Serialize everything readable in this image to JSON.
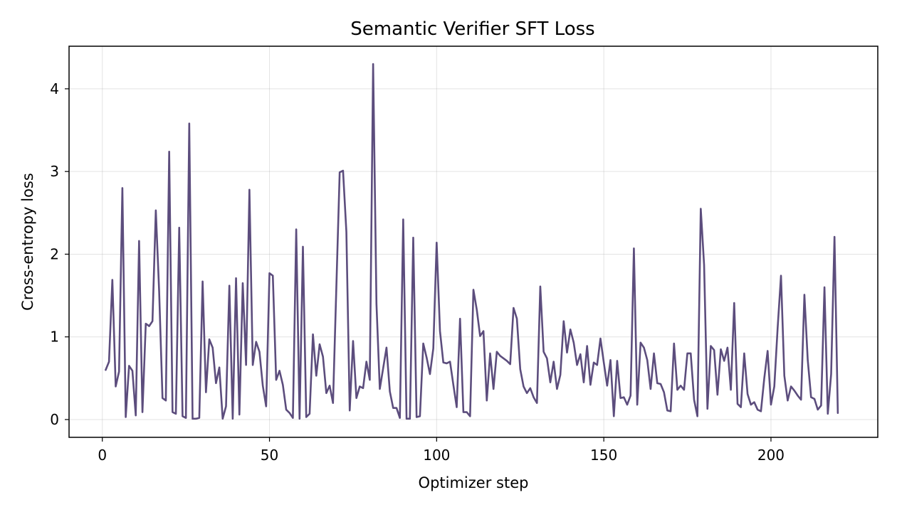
{
  "chart_data": {
    "type": "line",
    "title": "Semantic Verifier SFT Loss",
    "xlabel": "Optimizer step",
    "ylabel": "Cross-entropy loss",
    "xlim": [
      -9.95,
      231.95
    ],
    "ylim": [
      -0.215,
      4.515
    ],
    "xticks": [
      0,
      50,
      100,
      150,
      200
    ],
    "yticks": [
      0,
      1,
      2,
      3,
      4
    ],
    "grid": true,
    "legend": "none",
    "line_color": "#5c4d7d",
    "series": [
      {
        "x": [
          1,
          2,
          3,
          4,
          5,
          6,
          7,
          8,
          9,
          10,
          11,
          12,
          13,
          14,
          15,
          16,
          17,
          18,
          19,
          20,
          21,
          22,
          23,
          24,
          25,
          26,
          27,
          28,
          29,
          30,
          31,
          32,
          33,
          34,
          35,
          36,
          37,
          38,
          39,
          40,
          41,
          42,
          43,
          44,
          45,
          46,
          47,
          48,
          49,
          50,
          51,
          52,
          53,
          54,
          55,
          56,
          57,
          58,
          59,
          60,
          61,
          62,
          63,
          64,
          65,
          66,
          67,
          68,
          69,
          70,
          71,
          72,
          73,
          74,
          75,
          76,
          77,
          78,
          79,
          80,
          81,
          82,
          83,
          84,
          85,
          86,
          87,
          88,
          89,
          90,
          91,
          92,
          93,
          94,
          95,
          96,
          97,
          98,
          99,
          100,
          101,
          102,
          103,
          104,
          105,
          106,
          107,
          108,
          109,
          110,
          111,
          112,
          113,
          114,
          115,
          116,
          117,
          118,
          119,
          120,
          121,
          122,
          123,
          124,
          125,
          126,
          127,
          128,
          129,
          130,
          131,
          132,
          133,
          134,
          135,
          136,
          137,
          138,
          139,
          140,
          141,
          142,
          143,
          144,
          145,
          146,
          147,
          148,
          149,
          150,
          151,
          152,
          153,
          154,
          155,
          156,
          157,
          158,
          159,
          160,
          161,
          162,
          163,
          164,
          165,
          166,
          167,
          168,
          169,
          170,
          171,
          172,
          173,
          174,
          175,
          176,
          177,
          178,
          179,
          180,
          181,
          182,
          183,
          184,
          185,
          186,
          187,
          188,
          189,
          190,
          191,
          192,
          193,
          194,
          195,
          196,
          197,
          198,
          199,
          200,
          201,
          202,
          203,
          204,
          205,
          206,
          207,
          208,
          209,
          210,
          211,
          212,
          213,
          214,
          215,
          216,
          217,
          218,
          219,
          220
        ],
        "values": [
          0.6,
          0.7,
          1.69,
          0.4,
          0.58,
          2.8,
          0.03,
          0.65,
          0.59,
          0.05,
          2.16,
          0.09,
          1.16,
          1.13,
          1.19,
          2.53,
          1.55,
          0.26,
          0.23,
          3.24,
          0.09,
          0.07,
          2.32,
          0.04,
          0.02,
          3.58,
          0.01,
          0.01,
          0.02,
          1.67,
          0.33,
          0.97,
          0.87,
          0.44,
          0.63,
          0.01,
          0.16,
          1.62,
          0.01,
          1.71,
          0.06,
          1.65,
          0.66,
          2.78,
          0.66,
          0.94,
          0.82,
          0.41,
          0.16,
          1.77,
          1.74,
          0.48,
          0.59,
          0.42,
          0.12,
          0.08,
          0.02,
          2.3,
          0.01,
          2.09,
          0.03,
          0.07,
          1.03,
          0.53,
          0.91,
          0.76,
          0.32,
          0.41,
          0.2,
          1.6,
          2.99,
          3.01,
          2.27,
          0.11,
          0.95,
          0.26,
          0.4,
          0.38,
          0.7,
          0.48,
          4.3,
          1.4,
          0.37,
          0.62,
          0.87,
          0.34,
          0.14,
          0.14,
          0.02,
          2.42,
          0.01,
          0.01,
          2.2,
          0.03,
          0.04,
          0.92,
          0.75,
          0.55,
          0.86,
          2.14,
          1.07,
          0.69,
          0.68,
          0.7,
          0.42,
          0.15,
          1.22,
          0.09,
          0.09,
          0.04,
          1.57,
          1.33,
          1.01,
          1.07,
          0.23,
          0.8,
          0.37,
          0.82,
          0.77,
          0.74,
          0.71,
          0.67,
          1.35,
          1.22,
          0.61,
          0.4,
          0.32,
          0.38,
          0.27,
          0.2,
          1.61,
          0.82,
          0.74,
          0.45,
          0.7,
          0.37,
          0.54,
          1.19,
          0.81,
          1.09,
          0.93,
          0.66,
          0.79,
          0.45,
          0.89,
          0.42,
          0.69,
          0.66,
          0.98,
          0.69,
          0.41,
          0.72,
          0.04,
          0.71,
          0.26,
          0.27,
          0.18,
          0.29,
          2.07,
          0.18,
          0.93,
          0.87,
          0.72,
          0.37,
          0.8,
          0.44,
          0.43,
          0.33,
          0.11,
          0.1,
          0.92,
          0.36,
          0.41,
          0.36,
          0.8,
          0.8,
          0.24,
          0.04,
          2.55,
          1.87,
          0.13,
          0.89,
          0.84,
          0.3,
          0.85,
          0.71,
          0.87,
          0.36,
          1.41,
          0.19,
          0.15,
          0.8,
          0.31,
          0.18,
          0.21,
          0.12,
          0.1,
          0.5,
          0.83,
          0.18,
          0.4,
          1.11,
          1.74,
          0.53,
          0.23,
          0.4,
          0.35,
          0.29,
          0.24,
          1.51,
          0.72,
          0.27,
          0.25,
          0.12,
          0.17,
          1.6,
          0.07,
          0.55,
          2.21,
          0.08
        ]
      }
    ]
  }
}
